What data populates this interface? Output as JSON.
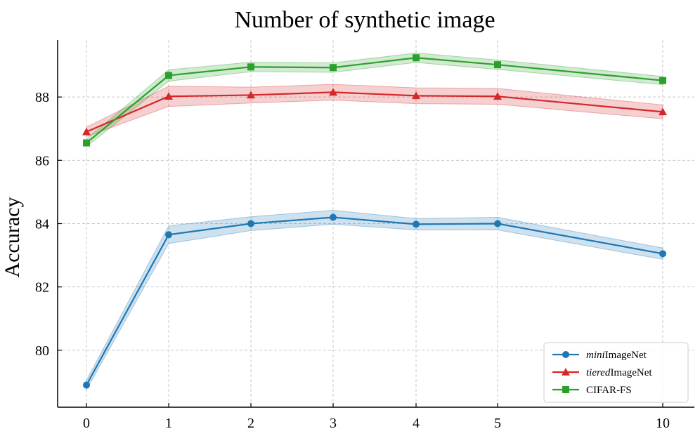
{
  "chart_data": {
    "type": "line",
    "title": "Number of synthetic image",
    "xlabel": "",
    "ylabel": "Accuracy",
    "x": [
      0,
      1,
      2,
      3,
      4,
      5,
      10
    ],
    "x_tick_labels": [
      "0",
      "1",
      "2",
      "3",
      "4",
      "5",
      "10"
    ],
    "y_ticks": [
      80,
      82,
      84,
      86,
      88
    ],
    "ylim": [
      78.2,
      89.8
    ],
    "grid": true,
    "legend_position": "lower-right",
    "series": [
      {
        "name": "miniImageNet",
        "name_italic": "mini",
        "name_rest": "ImageNet",
        "color": "#1f77b4",
        "marker": "circle",
        "values": [
          78.9,
          83.65,
          84.0,
          84.2,
          83.98,
          84.0,
          83.05
        ],
        "band": [
          0.15,
          0.28,
          0.22,
          0.22,
          0.18,
          0.2,
          0.18
        ]
      },
      {
        "name": "tieredImageNet",
        "name_italic": "tiered",
        "name_rest": "ImageNet",
        "color": "#d62728",
        "marker": "triangle",
        "values": [
          86.9,
          88.02,
          88.06,
          88.15,
          88.04,
          88.02,
          87.53
        ],
        "band": [
          0.15,
          0.32,
          0.25,
          0.25,
          0.25,
          0.25,
          0.22
        ]
      },
      {
        "name": "CIFAR-FS",
        "name_italic": "",
        "name_rest": "CIFAR-FS",
        "color": "#2ca02c",
        "marker": "square",
        "values": [
          86.55,
          88.68,
          88.95,
          88.93,
          89.24,
          89.02,
          88.52
        ],
        "band": [
          0.12,
          0.18,
          0.15,
          0.15,
          0.15,
          0.15,
          0.13
        ]
      }
    ]
  }
}
